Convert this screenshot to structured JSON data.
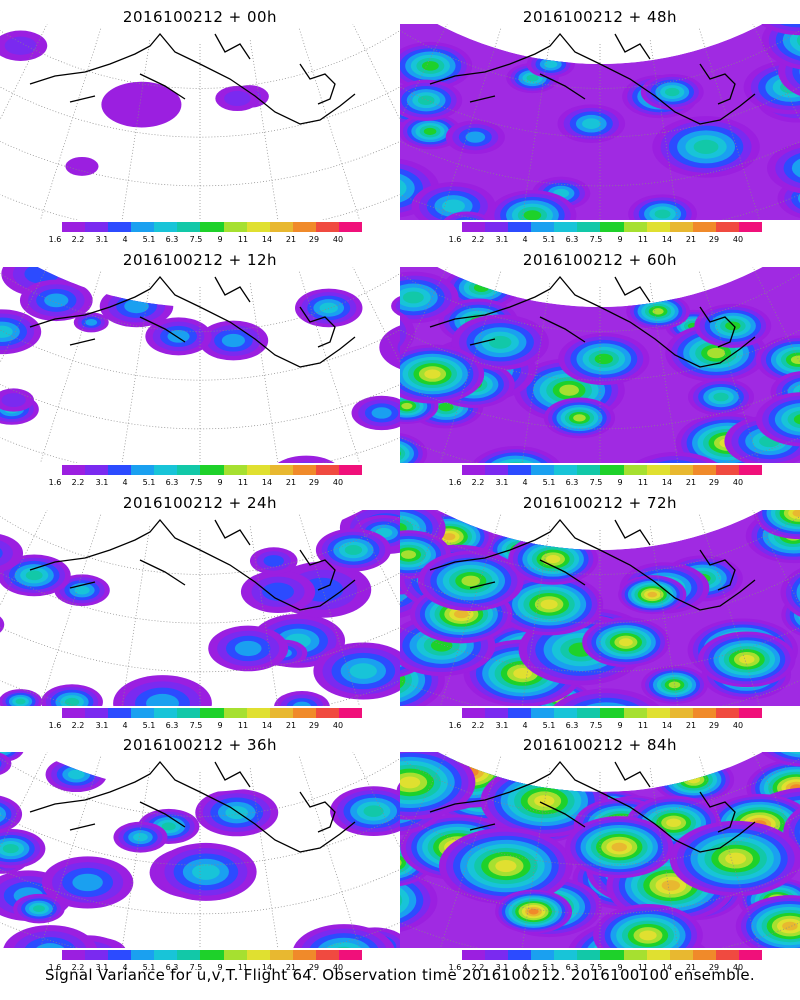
{
  "caption": "Signal Variance for u,v,T. Flight 64. Observation time 2016100212. 2016100100 ensemble.",
  "colorbar": {
    "labels": [
      "1.6",
      "2.2",
      "3.1",
      "4",
      "5.1",
      "6.3",
      "7.5",
      "9",
      "11",
      "14",
      "21",
      "29",
      "40"
    ],
    "colors": [
      "#9b1fe0",
      "#7a2af0",
      "#2c4bff",
      "#1aa0f0",
      "#18c4d8",
      "#12c8a8",
      "#1ed12a",
      "#a6e030",
      "#e0e030",
      "#e8b830",
      "#f08a2a",
      "#f04a40",
      "#f0107a"
    ]
  },
  "panels": [
    {
      "title": "2016100212 + 00h",
      "level": 0
    },
    {
      "title": "2016100212 + 48h",
      "level": 3
    },
    {
      "title": "2016100212 + 12h",
      "level": 1
    },
    {
      "title": "2016100212 + 60h",
      "level": 4
    },
    {
      "title": "2016100212 + 24h",
      "level": 2
    },
    {
      "title": "2016100212 + 72h",
      "level": 5
    },
    {
      "title": "2016100212 + 36h",
      "level": 2.5
    },
    {
      "title": "2016100212 + 84h",
      "level": 6
    }
  ]
}
